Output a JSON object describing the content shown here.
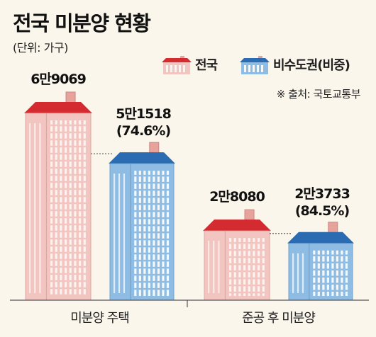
{
  "title": "전국 미분양 현황",
  "subtitle": "(단위: 가구)",
  "source": "※ 출처: 국토교통부",
  "colors": {
    "nationwide_wall": "#f2c5c1",
    "nationwide_roof": "#d42b31",
    "nationwide_window": "#fbf3f0",
    "nonmetro_wall": "#8fbce3",
    "nonmetro_roof": "#2a6bb2",
    "nonmetro_window": "#f2f8fc",
    "chimney": "#e7a29c",
    "background": "#fbf6ec"
  },
  "chart_data": {
    "type": "bar",
    "title": "전국 미분양 현황",
    "unit": "(단위: 가구)",
    "legend_position": "top-right",
    "categories": [
      "미분양 주택",
      "준공 후 미분양"
    ],
    "series": [
      {
        "name": "전국",
        "values": [
          69069,
          28080
        ],
        "labels": [
          "6만9069",
          "2만8080"
        ],
        "shares": [
          "",
          ""
        ]
      },
      {
        "name": "비수도권(비중)",
        "values": [
          51518,
          23733
        ],
        "labels": [
          "5만1518",
          "2만3733"
        ],
        "shares": [
          "(74.6%)",
          "(84.5%)"
        ]
      }
    ]
  }
}
